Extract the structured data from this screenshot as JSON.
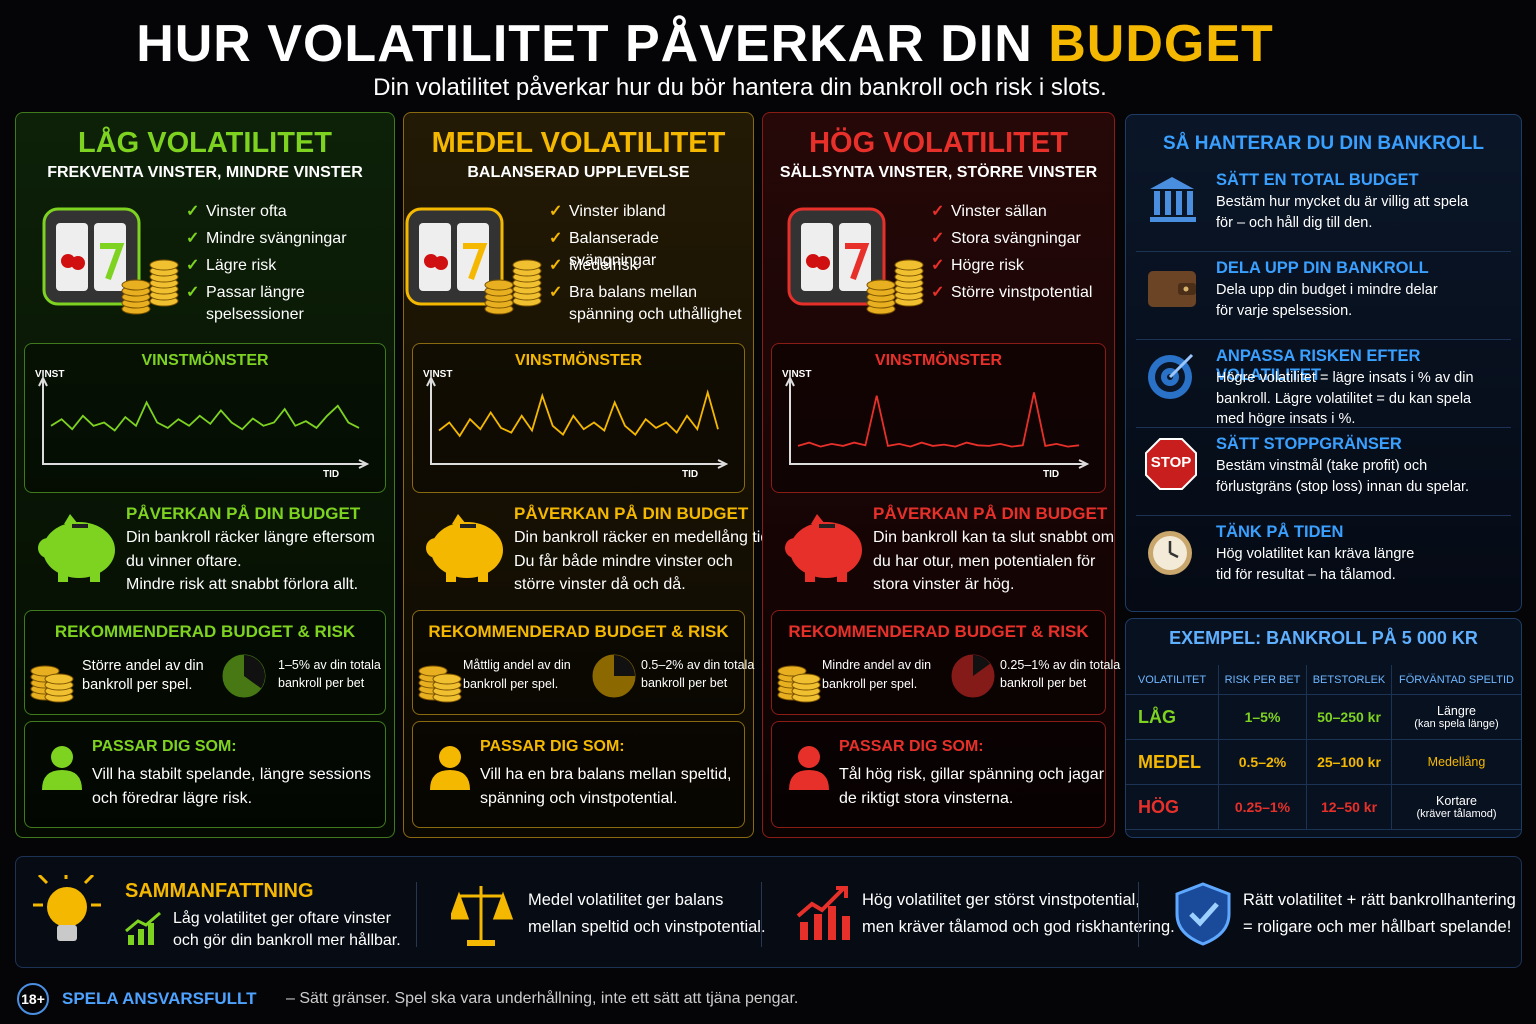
{
  "header": {
    "title": "HUR VOLATILITET PÅVERKAR DIN",
    "title_highlight": "BUDGET",
    "subtitle": "Din volatilitet påverkar hur du bör hantera din bankroll och risk i slots."
  },
  "columns": [
    {
      "color": "#7ed321",
      "title": "LÅG VOLATILITET",
      "subtitle": "FREKVENTA VINSTER, MINDRE VINSTER",
      "bullets": [
        "Vinster ofta",
        "Mindre svängningar",
        "Lägre risk",
        "Passar längre spelsessioner"
      ],
      "chart": {
        "title": "VINSTMÖNSTER",
        "y_label": "VINST",
        "x_label": "TID"
      },
      "impact": {
        "title": "PÅVERKAN PÅ DIN BUDGET",
        "lines": [
          "Din bankroll räcker längre eftersom",
          "du vinner oftare.",
          "Mindre risk att snabbt förlora allt."
        ]
      },
      "recommendation": {
        "title": "REKOMMENDERAD BUDGET & RISK",
        "left": [
          "Större andel av din",
          "bankroll per spel."
        ],
        "right": [
          "1–5% av din totala",
          "bankroll per bet"
        ]
      },
      "fit": {
        "title": "PASSAR DIG SOM:",
        "lines": [
          "Vill ha stabilt spelande, längre sessions",
          "och föredrar lägre risk."
        ]
      }
    },
    {
      "color": "#f5b800",
      "title": "MEDEL VOLATILITET",
      "subtitle": "BALANSERAD UPPLEVELSE",
      "bullets": [
        "Vinster ibland",
        "Balanserade svängningar",
        "Medelrisk",
        "Bra balans mellan spänning och uthållighet"
      ],
      "chart": {
        "title": "VINSTMÖNSTER",
        "y_label": "VINST",
        "x_label": "TID"
      },
      "impact": {
        "title": "PÅVERKAN PÅ DIN BUDGET",
        "lines": [
          "Din bankroll räcker en medellång tid.",
          "Du får både mindre vinster och",
          "större vinster då och då."
        ]
      },
      "recommendation": {
        "title": "REKOMMENDERAD BUDGET & RISK",
        "left": [
          "Måttlig andel av din",
          "bankroll per spel."
        ],
        "right": [
          "0.5–2% av din totala",
          "bankroll per bet"
        ]
      },
      "fit": {
        "title": "PASSAR DIG SOM:",
        "lines": [
          "Vill ha en bra balans mellan speltid,",
          "spänning och vinstpotential."
        ]
      }
    },
    {
      "color": "#e8302a",
      "title": "HÖG VOLATILITET",
      "subtitle": "SÄLLSYNTA VINSTER, STÖRRE VINSTER",
      "bullets": [
        "Vinster sällan",
        "Stora svängningar",
        "Högre risk",
        "Större vinstpotential"
      ],
      "chart": {
        "title": "VINSTMÖNSTER",
        "y_label": "VINST",
        "x_label": "TID"
      },
      "impact": {
        "title": "PÅVERKAN PÅ DIN BUDGET",
        "lines": [
          "Din bankroll kan ta slut snabbt om",
          "du har otur, men potentialen för",
          "stora vinster är hög."
        ]
      },
      "recommendation": {
        "title": "REKOMMENDERAD BUDGET & RISK",
        "left": [
          "Mindre andel av din",
          "bankroll per spel."
        ],
        "right": [
          "0.25–1% av din totala",
          "bankroll per bet"
        ]
      },
      "fit": {
        "title": "PASSAR DIG SOM:",
        "lines": [
          "Tål hög risk, gillar spänning och jagar",
          "de riktigt stora vinsterna."
        ]
      }
    }
  ],
  "bankroll": {
    "title": "SÅ HANTERAR DU DIN BANKROLL",
    "items": [
      {
        "title": "SÄTT EN TOTAL BUDGET",
        "lines": [
          "Bestäm hur mycket du är villig att spela",
          "för – och håll dig till den."
        ]
      },
      {
        "title": "DELA UPP DIN BANKROLL",
        "lines": [
          "Dela upp din budget i mindre delar",
          "för varje spelsession."
        ]
      },
      {
        "title": "ANPASSA RISKEN EFTER VOLATILITET",
        "lines": [
          "Högre volatilitet = lägre insats i % av din",
          "bankroll. Lägre volatilitet = du kan spela",
          "med högre insats i %."
        ]
      },
      {
        "title": "SÄTT STOPPGRÄNSER",
        "icon_label": "STOP",
        "lines": [
          "Bestäm vinstmål (take profit) och",
          "förlustgräns (stop loss) innan du spelar."
        ]
      },
      {
        "title": "TÄNK PÅ TIDEN",
        "lines": [
          "Hög volatilitet kan kräva längre",
          "tid för resultat – ha tålamod."
        ]
      }
    ]
  },
  "example": {
    "title": "EXEMPEL: BANKROLL PÅ 5 000 KR",
    "headers": [
      "VOLATILITET",
      "RISK PER BET",
      "BETSTORLEK",
      "FÖRVÄNTAD SPELTID"
    ],
    "rows": [
      {
        "label": "LÅG",
        "risk": "1–5%",
        "size": "50–250 kr",
        "time": "Längre",
        "note": "(kan spela länge)"
      },
      {
        "label": "MEDEL",
        "risk": "0.5–2%",
        "size": "25–100 kr",
        "time": "Medellång"
      },
      {
        "label": "HÖG",
        "risk": "0.25–1%",
        "size": "12–50 kr",
        "time": "Kortare",
        "note": "(kräver tålamod)"
      }
    ]
  },
  "summary": {
    "title": "SAMMANFATTNING",
    "items": [
      [
        "Låg volatilitet ger oftare vinster",
        "och gör din bankroll mer hållbar."
      ],
      [
        "Medel volatilitet ger balans",
        "mellan speltid och vinstpotential."
      ],
      [
        "Hög volatilitet ger störst vinstpotential,",
        "men kräver tålamod och god riskhantering."
      ],
      [
        "Rätt volatilitet + rätt bankrollhantering",
        "= roligare och mer hållbart spelande!"
      ]
    ]
  },
  "footer": {
    "badge": "18+",
    "title": "SPELA ANSVARSFULLT",
    "text": "– Sätt gränser. Spel ska vara underhållning, inte ett sätt att tjäna pengar."
  }
}
